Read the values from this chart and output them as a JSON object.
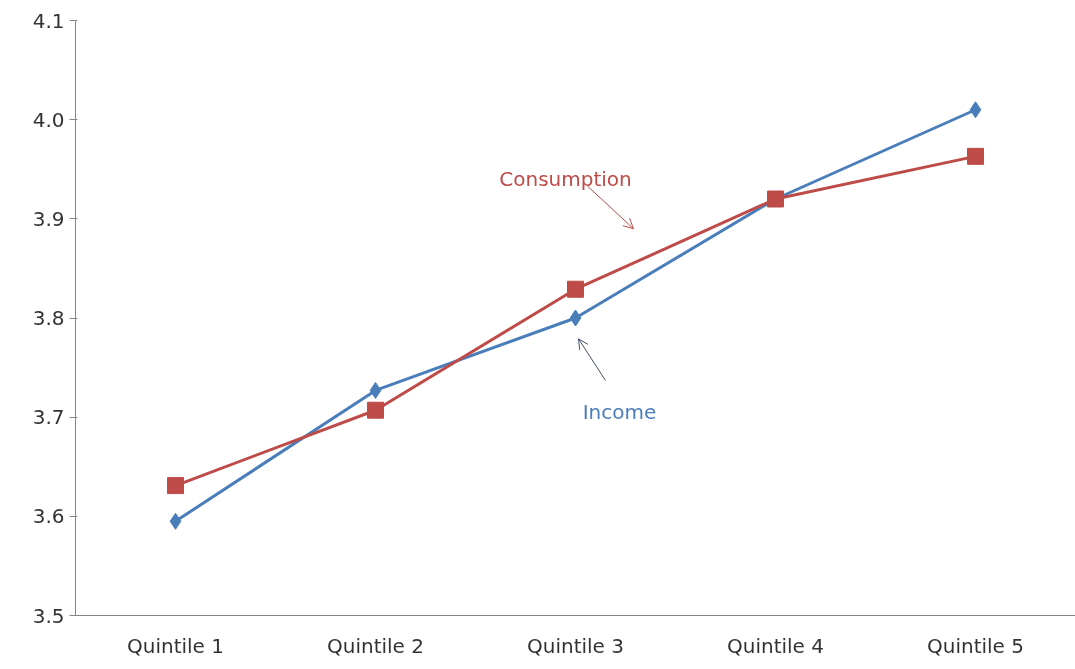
{
  "chart_data": {
    "type": "line",
    "categories": [
      "Quintile 1",
      "Quintile 2",
      "Quintile 3",
      "Quintile 4",
      "Quintile 5"
    ],
    "series": [
      {
        "name": "Income",
        "color": "#4a7ebb",
        "marker": "diamond",
        "values": [
          3.595,
          3.727,
          3.8,
          3.92,
          4.01
        ]
      },
      {
        "name": "Consumption",
        "color": "#be4b48",
        "marker": "square",
        "values": [
          3.631,
          3.707,
          3.829,
          3.92,
          3.963
        ]
      }
    ],
    "ylim": [
      3.5,
      4.1
    ],
    "yticks": [
      {
        "value": 3.5,
        "label": "3.5"
      },
      {
        "value": 3.6,
        "label": "3.6"
      },
      {
        "value": 3.7,
        "label": "3.7"
      },
      {
        "value": 3.8,
        "label": "3.8"
      },
      {
        "value": 3.9,
        "label": "3.9"
      },
      {
        "value": 4.0,
        "label": "4.0"
      },
      {
        "value": 4.1,
        "label": "4.1"
      }
    ],
    "grid": false
  }
}
